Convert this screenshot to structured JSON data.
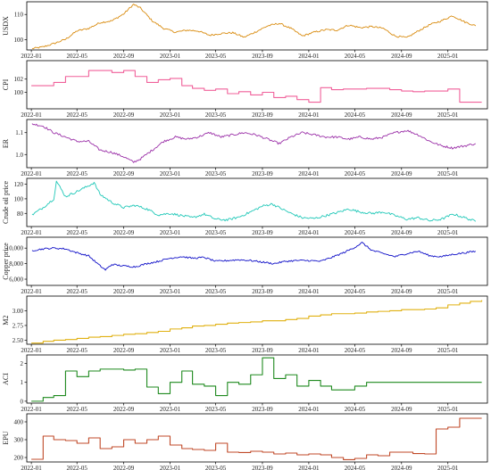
{
  "chart_data": [
    {
      "type": "line",
      "ylabel": "USDX",
      "color": "#d98c10",
      "ylim": [
        96,
        115
      ],
      "yticks": [
        100,
        110
      ],
      "ytick_labels": [
        "100",
        "110"
      ],
      "x": [
        "2022-01-03",
        "2022-02-01",
        "2022-03-01",
        "2022-04-01",
        "2022-05-01",
        "2022-06-01",
        "2022-07-01",
        "2022-08-01",
        "2022-09-01",
        "2022-09-27",
        "2022-10-15",
        "2022-11-15",
        "2022-12-15",
        "2023-01-15",
        "2023-02-15",
        "2023-03-15",
        "2023-04-15",
        "2023-05-15",
        "2023-06-15",
        "2023-07-15",
        "2023-08-15",
        "2023-09-15",
        "2023-10-15",
        "2023-11-15",
        "2023-12-15",
        "2024-01-15",
        "2024-02-15",
        "2024-03-15",
        "2024-04-15",
        "2024-05-15",
        "2024-06-15",
        "2024-07-15",
        "2024-08-15",
        "2024-09-15",
        "2024-10-15",
        "2024-11-15",
        "2024-12-15",
        "2025-01-13",
        "2025-02-15",
        "2025-03-15"
      ],
      "values": [
        96.5,
        97.2,
        98.5,
        100.2,
        103.5,
        104.5,
        106.8,
        107.5,
        110.2,
        114.0,
        112.5,
        107.5,
        104.5,
        103.0,
        103.8,
        103.5,
        101.8,
        102.5,
        102.8,
        101.0,
        103.2,
        105.5,
        106.5,
        104.5,
        101.5,
        103.0,
        104.0,
        103.8,
        105.8,
        104.8,
        105.2,
        104.5,
        101.5,
        100.8,
        103.5,
        106.0,
        107.5,
        109.5,
        107.0,
        105.5
      ],
      "noise": 0.35
    },
    {
      "type": "step",
      "ylabel": "CPI",
      "color": "#f0609a",
      "ylim": [
        97.5,
        104.8
      ],
      "yticks": [
        100,
        102
      ],
      "ytick_labels": [
        "100",
        "102"
      ],
      "x": [
        "2022-01-01",
        "2022-03-01",
        "2022-04-01",
        "2022-06-01",
        "2022-08-01",
        "2022-09-01",
        "2022-10-01",
        "2022-11-01",
        "2022-12-01",
        "2023-01-01",
        "2023-02-01",
        "2023-03-01",
        "2023-04-01",
        "2023-05-01",
        "2023-06-01",
        "2023-07-01",
        "2023-08-01",
        "2023-09-01",
        "2023-10-01",
        "2023-11-01",
        "2023-12-01",
        "2024-01-01",
        "2024-02-01",
        "2024-03-01",
        "2024-04-01",
        "2024-06-01",
        "2024-08-01",
        "2024-09-01",
        "2024-10-01",
        "2024-11-01",
        "2024-12-01",
        "2025-01-01",
        "2025-02-01",
        "2025-03-01",
        "2025-03-31"
      ],
      "values": [
        101.0,
        101.5,
        102.4,
        103.3,
        103.0,
        103.3,
        102.4,
        101.5,
        101.9,
        102.1,
        101.0,
        100.6,
        100.3,
        100.5,
        99.8,
        100.1,
        99.6,
        100.0,
        99.2,
        99.4,
        98.9,
        98.5,
        100.7,
        100.4,
        100.5,
        100.6,
        100.4,
        100.2,
        100.1,
        100.2,
        100.2,
        100.5,
        98.5,
        98.5,
        98.5
      ]
    },
    {
      "type": "line",
      "ylabel": "ER",
      "color": "#9b30a8",
      "ylim": [
        0.94,
        1.16
      ],
      "yticks": [
        1.0,
        1.1
      ],
      "ytick_labels": [
        "1.0",
        "1.1"
      ],
      "x": [
        "2022-01-03",
        "2022-02-01",
        "2022-03-01",
        "2022-04-01",
        "2022-05-01",
        "2022-06-01",
        "2022-07-01",
        "2022-08-01",
        "2022-09-01",
        "2022-09-27",
        "2022-10-15",
        "2022-11-15",
        "2022-12-15",
        "2023-01-15",
        "2023-02-15",
        "2023-03-15",
        "2023-04-15",
        "2023-05-15",
        "2023-06-15",
        "2023-07-15",
        "2023-08-15",
        "2023-09-15",
        "2023-10-15",
        "2023-11-15",
        "2023-12-15",
        "2024-01-15",
        "2024-02-15",
        "2024-03-15",
        "2024-04-15",
        "2024-05-15",
        "2024-06-15",
        "2024-07-15",
        "2024-08-15",
        "2024-09-15",
        "2024-10-15",
        "2024-11-15",
        "2024-12-15",
        "2025-01-13",
        "2025-02-15",
        "2025-03-15"
      ],
      "values": [
        1.14,
        1.13,
        1.1,
        1.08,
        1.06,
        1.06,
        1.02,
        1.01,
        0.99,
        0.965,
        0.98,
        1.02,
        1.06,
        1.08,
        1.07,
        1.08,
        1.1,
        1.08,
        1.09,
        1.1,
        1.09,
        1.07,
        1.05,
        1.08,
        1.1,
        1.09,
        1.08,
        1.08,
        1.07,
        1.08,
        1.07,
        1.08,
        1.1,
        1.11,
        1.09,
        1.06,
        1.04,
        1.03,
        1.04,
        1.05
      ],
      "noise": 0.005
    },
    {
      "type": "line",
      "ylabel": "Crude oil price",
      "color": "#20c8b8",
      "ylim": [
        62,
        128
      ],
      "yticks": [
        80,
        100,
        120
      ],
      "ytick_labels": [
        "80",
        "100",
        "120"
      ],
      "x": [
        "2022-01-03",
        "2022-02-01",
        "2022-03-01",
        "2022-03-08",
        "2022-04-01",
        "2022-05-01",
        "2022-06-01",
        "2022-06-15",
        "2022-07-01",
        "2022-08-01",
        "2022-09-01",
        "2022-10-01",
        "2022-11-01",
        "2022-12-01",
        "2023-01-01",
        "2023-02-01",
        "2023-03-01",
        "2023-04-01",
        "2023-05-01",
        "2023-06-01",
        "2023-07-01",
        "2023-08-01",
        "2023-09-01",
        "2023-09-27",
        "2023-10-15",
        "2023-11-15",
        "2023-12-15",
        "2024-01-15",
        "2024-02-15",
        "2024-03-15",
        "2024-04-15",
        "2024-05-15",
        "2024-06-15",
        "2024-07-15",
        "2024-08-15",
        "2024-09-15",
        "2024-10-15",
        "2024-11-15",
        "2024-12-15",
        "2025-01-15",
        "2025-02-15",
        "2025-03-15"
      ],
      "values": [
        78,
        88,
        100,
        124,
        103,
        110,
        118,
        122,
        106,
        95,
        88,
        91,
        86,
        78,
        80,
        77,
        74,
        79,
        72,
        71,
        75,
        82,
        90,
        93,
        88,
        80,
        74,
        73,
        77,
        81,
        86,
        82,
        80,
        82,
        77,
        72,
        74,
        70,
        72,
        79,
        74,
        69
      ],
      "noise": 1.6
    },
    {
      "type": "line",
      "ylabel": "Copper price",
      "color": "#1010c8",
      "ylim": [
        5200,
        11400
      ],
      "yticks": [
        6000,
        8000,
        10000
      ],
      "ytick_labels": [
        "6,000",
        "8,000",
        "10,000"
      ],
      "x": [
        "2022-01-03",
        "2022-02-01",
        "2022-03-01",
        "2022-04-01",
        "2022-05-01",
        "2022-06-01",
        "2022-07-01",
        "2022-07-15",
        "2022-08-01",
        "2022-09-01",
        "2022-10-01",
        "2022-11-01",
        "2022-12-01",
        "2023-01-01",
        "2023-02-01",
        "2023-03-01",
        "2023-04-01",
        "2023-05-01",
        "2023-06-01",
        "2023-07-01",
        "2023-08-01",
        "2023-09-01",
        "2023-10-01",
        "2023-11-01",
        "2023-12-01",
        "2024-01-01",
        "2024-02-01",
        "2024-03-01",
        "2024-04-01",
        "2024-05-01",
        "2024-05-20",
        "2024-06-15",
        "2024-07-15",
        "2024-08-15",
        "2024-09-15",
        "2024-10-15",
        "2024-11-15",
        "2024-12-15",
        "2025-01-15",
        "2025-02-15",
        "2025-03-15"
      ],
      "values": [
        9700,
        9900,
        10000,
        9900,
        9400,
        9000,
        7700,
        7200,
        7900,
        7700,
        7600,
        8000,
        8300,
        8700,
        8900,
        8700,
        8800,
        8300,
        8400,
        8500,
        8400,
        8200,
        8000,
        8300,
        8400,
        8400,
        8300,
        8800,
        9400,
        10100,
        10700,
        9700,
        9300,
        8900,
        9300,
        9600,
        9000,
        8900,
        9200,
        9400,
        9600
      ],
      "noise": 110
    },
    {
      "type": "step",
      "ylabel": "M2",
      "color": "#e0b010",
      "ylim": [
        2.43,
        3.25
      ],
      "yticks": [
        2.5,
        2.75,
        3.0
      ],
      "ytick_labels": [
        "2.50",
        "2.75",
        "3.00"
      ],
      "x": [
        "2022-01-01",
        "2022-02-01",
        "2022-03-01",
        "2022-04-01",
        "2022-05-01",
        "2022-06-01",
        "2022-07-01",
        "2022-08-01",
        "2022-09-01",
        "2022-10-01",
        "2022-11-01",
        "2022-12-01",
        "2023-01-01",
        "2023-02-01",
        "2023-03-01",
        "2023-04-01",
        "2023-05-01",
        "2023-06-01",
        "2023-07-01",
        "2023-08-01",
        "2023-09-01",
        "2023-10-01",
        "2023-11-01",
        "2023-12-01",
        "2024-01-01",
        "2024-02-01",
        "2024-03-01",
        "2024-04-01",
        "2024-05-01",
        "2024-06-01",
        "2024-07-01",
        "2024-08-01",
        "2024-09-01",
        "2024-10-01",
        "2024-11-01",
        "2024-12-01",
        "2025-01-01",
        "2025-02-01",
        "2025-03-01",
        "2025-03-31"
      ],
      "values": [
        2.45,
        2.48,
        2.5,
        2.51,
        2.53,
        2.55,
        2.56,
        2.58,
        2.6,
        2.61,
        2.63,
        2.65,
        2.69,
        2.71,
        2.74,
        2.75,
        2.77,
        2.79,
        2.8,
        2.81,
        2.83,
        2.83,
        2.85,
        2.87,
        2.91,
        2.93,
        2.95,
        2.95,
        2.96,
        2.98,
        2.99,
        3.0,
        3.02,
        3.02,
        3.03,
        3.05,
        3.1,
        3.13,
        3.16,
        3.18
      ]
    },
    {
      "type": "step",
      "ylabel": "ACI",
      "color": "#1f8a1f",
      "ylim": [
        -0.1,
        2.45
      ],
      "yticks": [
        0,
        1,
        2
      ],
      "ytick_labels": [
        "0",
        "1",
        "2"
      ],
      "x": [
        "2022-01-01",
        "2022-02-01",
        "2022-03-01",
        "2022-04-01",
        "2022-05-01",
        "2022-06-01",
        "2022-07-01",
        "2022-08-01",
        "2022-09-01",
        "2022-10-01",
        "2022-11-01",
        "2022-12-01",
        "2023-01-01",
        "2023-02-01",
        "2023-03-01",
        "2023-04-01",
        "2023-05-01",
        "2023-06-01",
        "2023-07-01",
        "2023-08-01",
        "2023-09-01",
        "2023-10-01",
        "2023-11-01",
        "2023-12-01",
        "2024-01-01",
        "2024-02-01",
        "2024-03-01",
        "2024-04-01",
        "2024-05-01",
        "2024-06-01",
        "2024-12-01",
        "2025-03-31"
      ],
      "values": [
        0,
        0.2,
        0.3,
        1.6,
        1.3,
        1.6,
        1.7,
        1.7,
        1.65,
        1.7,
        0.75,
        0.4,
        1.0,
        1.6,
        0.9,
        0.8,
        0.3,
        1.0,
        0.9,
        1.4,
        2.3,
        1.2,
        1.4,
        0.8,
        1.1,
        0.8,
        0.6,
        0.6,
        0.8,
        1.0,
        1.0,
        1.0
      ]
    },
    {
      "type": "step",
      "ylabel": "EPU",
      "color": "#c04a28",
      "ylim": [
        175,
        445
      ],
      "yticks": [
        200,
        300,
        400
      ],
      "ytick_labels": [
        "200",
        "300",
        "400"
      ],
      "x": [
        "2022-01-01",
        "2022-02-01",
        "2022-03-01",
        "2022-04-01",
        "2022-05-01",
        "2022-06-01",
        "2022-07-01",
        "2022-08-01",
        "2022-09-01",
        "2022-10-01",
        "2022-11-01",
        "2022-12-01",
        "2023-01-01",
        "2023-02-01",
        "2023-03-01",
        "2023-04-01",
        "2023-05-01",
        "2023-06-01",
        "2023-07-01",
        "2023-08-01",
        "2023-09-01",
        "2023-10-01",
        "2023-11-01",
        "2023-12-01",
        "2024-01-01",
        "2024-02-01",
        "2024-03-01",
        "2024-04-01",
        "2024-05-01",
        "2024-06-01",
        "2024-07-01",
        "2024-08-01",
        "2024-09-01",
        "2024-10-01",
        "2024-11-01",
        "2024-12-01",
        "2025-01-01",
        "2025-02-01",
        "2025-03-31"
      ],
      "values": [
        190,
        320,
        300,
        295,
        280,
        310,
        250,
        260,
        300,
        280,
        300,
        320,
        270,
        250,
        245,
        240,
        280,
        230,
        228,
        235,
        230,
        220,
        225,
        215,
        220,
        215,
        200,
        188,
        195,
        215,
        210,
        230,
        230,
        222,
        220,
        360,
        370,
        420,
        420
      ]
    }
  ],
  "x_axis": {
    "ticks": [
      "2022-01-01",
      "2022-05-01",
      "2022-09-01",
      "2023-01-01",
      "2023-05-01",
      "2023-09-01",
      "2024-01-01",
      "2024-05-01",
      "2024-09-01",
      "2025-01-01"
    ],
    "tick_labels": [
      "2022-01",
      "2022-05",
      "2022-09",
      "2023-01",
      "2023-05",
      "2023-09",
      "2024-01",
      "2024-05",
      "2024-09",
      "2025-01"
    ],
    "range": [
      "2021-12-20",
      "2025-04-15"
    ]
  },
  "style": {
    "frame_color": "#000000",
    "text_color": "#222222"
  }
}
